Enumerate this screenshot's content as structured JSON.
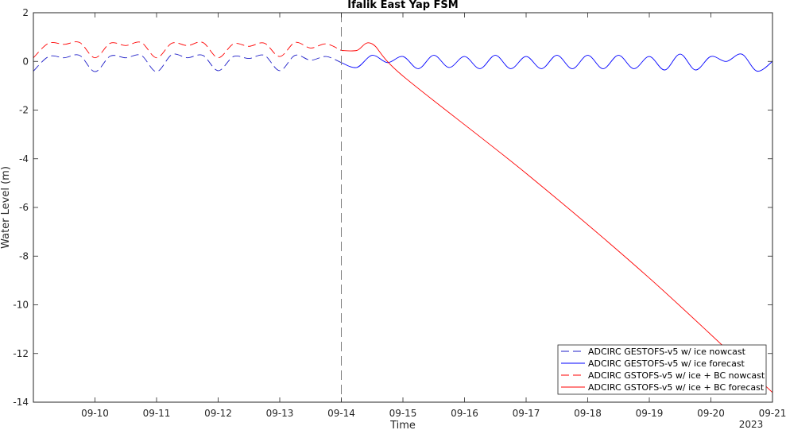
{
  "chart_data": {
    "type": "line",
    "title": "Ifalik East Yap FSM",
    "xlabel": "Time",
    "ylabel": "Water Level (m)",
    "x_year_label": "2023",
    "xlim": [
      "2023-09-09T00:00",
      "2023-09-21T00:00"
    ],
    "ylim": [
      -14,
      2
    ],
    "y_ticks": [
      2,
      0,
      -2,
      -4,
      -6,
      -8,
      -10,
      -12,
      -14
    ],
    "x_ticks": [
      "09-10",
      "09-11",
      "09-12",
      "09-13",
      "09-14",
      "09-15",
      "09-16",
      "09-17",
      "09-18",
      "09-19",
      "09-20",
      "09-21"
    ],
    "x_tick_dates": [
      "2023-09-10",
      "2023-09-11",
      "2023-09-12",
      "2023-09-13",
      "2023-09-14",
      "2023-09-15",
      "2023-09-16",
      "2023-09-17",
      "2023-09-18",
      "2023-09-19",
      "2023-09-20",
      "2023-09-21"
    ],
    "nowcast_forecast_divider": "2023-09-14T00:00",
    "grid": false,
    "legend_position": "bottom-right",
    "series": [
      {
        "name": "ADCIRC GESTOFS-v5 w/ ice nowcast",
        "color": "#1f1fc8",
        "style": "dashed",
        "x": [
          "2023-09-09T00:00",
          "2023-09-09T06:00",
          "2023-09-09T12:00",
          "2023-09-09T18:00",
          "2023-09-10T00:00",
          "2023-09-10T06:00",
          "2023-09-10T12:00",
          "2023-09-10T18:00",
          "2023-09-11T00:00",
          "2023-09-11T06:00",
          "2023-09-11T12:00",
          "2023-09-11T18:00",
          "2023-09-12T00:00",
          "2023-09-12T06:00",
          "2023-09-12T12:00",
          "2023-09-12T18:00",
          "2023-09-13T00:00",
          "2023-09-13T06:00",
          "2023-09-13T12:00",
          "2023-09-13T18:00",
          "2023-09-14T00:00"
        ],
        "y": [
          -0.4,
          0.2,
          0.15,
          0.25,
          -0.42,
          0.22,
          0.15,
          0.25,
          -0.42,
          0.28,
          0.15,
          0.25,
          -0.38,
          0.2,
          0.12,
          0.25,
          -0.38,
          0.25,
          0.05,
          0.2,
          -0.05
        ]
      },
      {
        "name": "ADCIRC GESTOFS-v5 w/ ice forecast",
        "color": "#0000ff",
        "style": "solid",
        "x": [
          "2023-09-14T00:00",
          "2023-09-14T06:00",
          "2023-09-14T12:00",
          "2023-09-14T18:00",
          "2023-09-15T00:00",
          "2023-09-15T06:00",
          "2023-09-15T12:00",
          "2023-09-15T18:00",
          "2023-09-16T00:00",
          "2023-09-16T06:00",
          "2023-09-16T12:00",
          "2023-09-16T18:00",
          "2023-09-17T00:00",
          "2023-09-17T06:00",
          "2023-09-17T12:00",
          "2023-09-17T18:00",
          "2023-09-18T00:00",
          "2023-09-18T06:00",
          "2023-09-18T12:00",
          "2023-09-18T18:00",
          "2023-09-19T00:00",
          "2023-09-19T06:00",
          "2023-09-19T12:00",
          "2023-09-19T18:00",
          "2023-09-20T00:00",
          "2023-09-20T06:00",
          "2023-09-20T12:00",
          "2023-09-20T18:00",
          "2023-09-21T00:00"
        ],
        "y": [
          -0.05,
          -0.25,
          0.25,
          -0.05,
          0.2,
          -0.3,
          0.25,
          -0.25,
          0.2,
          -0.3,
          0.25,
          -0.3,
          0.2,
          -0.3,
          0.25,
          -0.3,
          0.25,
          -0.3,
          0.25,
          -0.3,
          0.2,
          -0.35,
          0.3,
          -0.35,
          0.2,
          0.0,
          0.3,
          -0.4,
          0.0
        ]
      },
      {
        "name": "ADCIRC GSTOFS-v5 w/ ice + BC nowcast",
        "color": "#ff0000",
        "style": "dashed",
        "x": [
          "2023-09-09T00:00",
          "2023-09-09T06:00",
          "2023-09-09T12:00",
          "2023-09-09T18:00",
          "2023-09-10T00:00",
          "2023-09-10T06:00",
          "2023-09-10T12:00",
          "2023-09-10T18:00",
          "2023-09-11T00:00",
          "2023-09-11T06:00",
          "2023-09-11T12:00",
          "2023-09-11T18:00",
          "2023-09-12T00:00",
          "2023-09-12T06:00",
          "2023-09-12T12:00",
          "2023-09-12T18:00",
          "2023-09-13T00:00",
          "2023-09-13T06:00",
          "2023-09-13T12:00",
          "2023-09-13T18:00",
          "2023-09-14T00:00"
        ],
        "y": [
          0.15,
          0.75,
          0.7,
          0.78,
          0.15,
          0.75,
          0.65,
          0.78,
          0.15,
          0.75,
          0.65,
          0.78,
          0.15,
          0.72,
          0.62,
          0.75,
          0.2,
          0.78,
          0.55,
          0.72,
          0.45
        ]
      },
      {
        "name": "ADCIRC GSTOFS-v5 w/ ice + BC forecast",
        "color": "#ff0000",
        "style": "solid",
        "x": [
          "2023-09-14T00:00",
          "2023-09-14T06:00",
          "2023-09-14T12:00",
          "2023-09-15T00:00",
          "2023-09-17T00:00",
          "2023-09-19T00:00",
          "2023-09-21T00:00"
        ],
        "y": [
          0.45,
          0.45,
          0.72,
          -0.6,
          -4.6,
          -8.9,
          -13.6
        ]
      }
    ]
  }
}
